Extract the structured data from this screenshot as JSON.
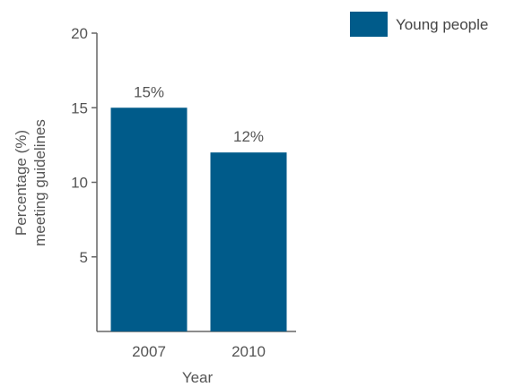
{
  "chart_data": {
    "type": "bar",
    "categories": [
      "2007",
      "2010"
    ],
    "series": [
      {
        "name": "Young people",
        "values": [
          15,
          12
        ],
        "color": "#005b8a"
      }
    ],
    "data_labels": [
      "15%",
      "12%"
    ],
    "xlabel": "Year",
    "ylabel_lines": [
      "Percentage (%)",
      "meeting guidelines"
    ],
    "ylim": [
      0,
      20
    ],
    "yticks": [
      5,
      10,
      15,
      20
    ],
    "grid": false,
    "legend_position": "top-right"
  }
}
